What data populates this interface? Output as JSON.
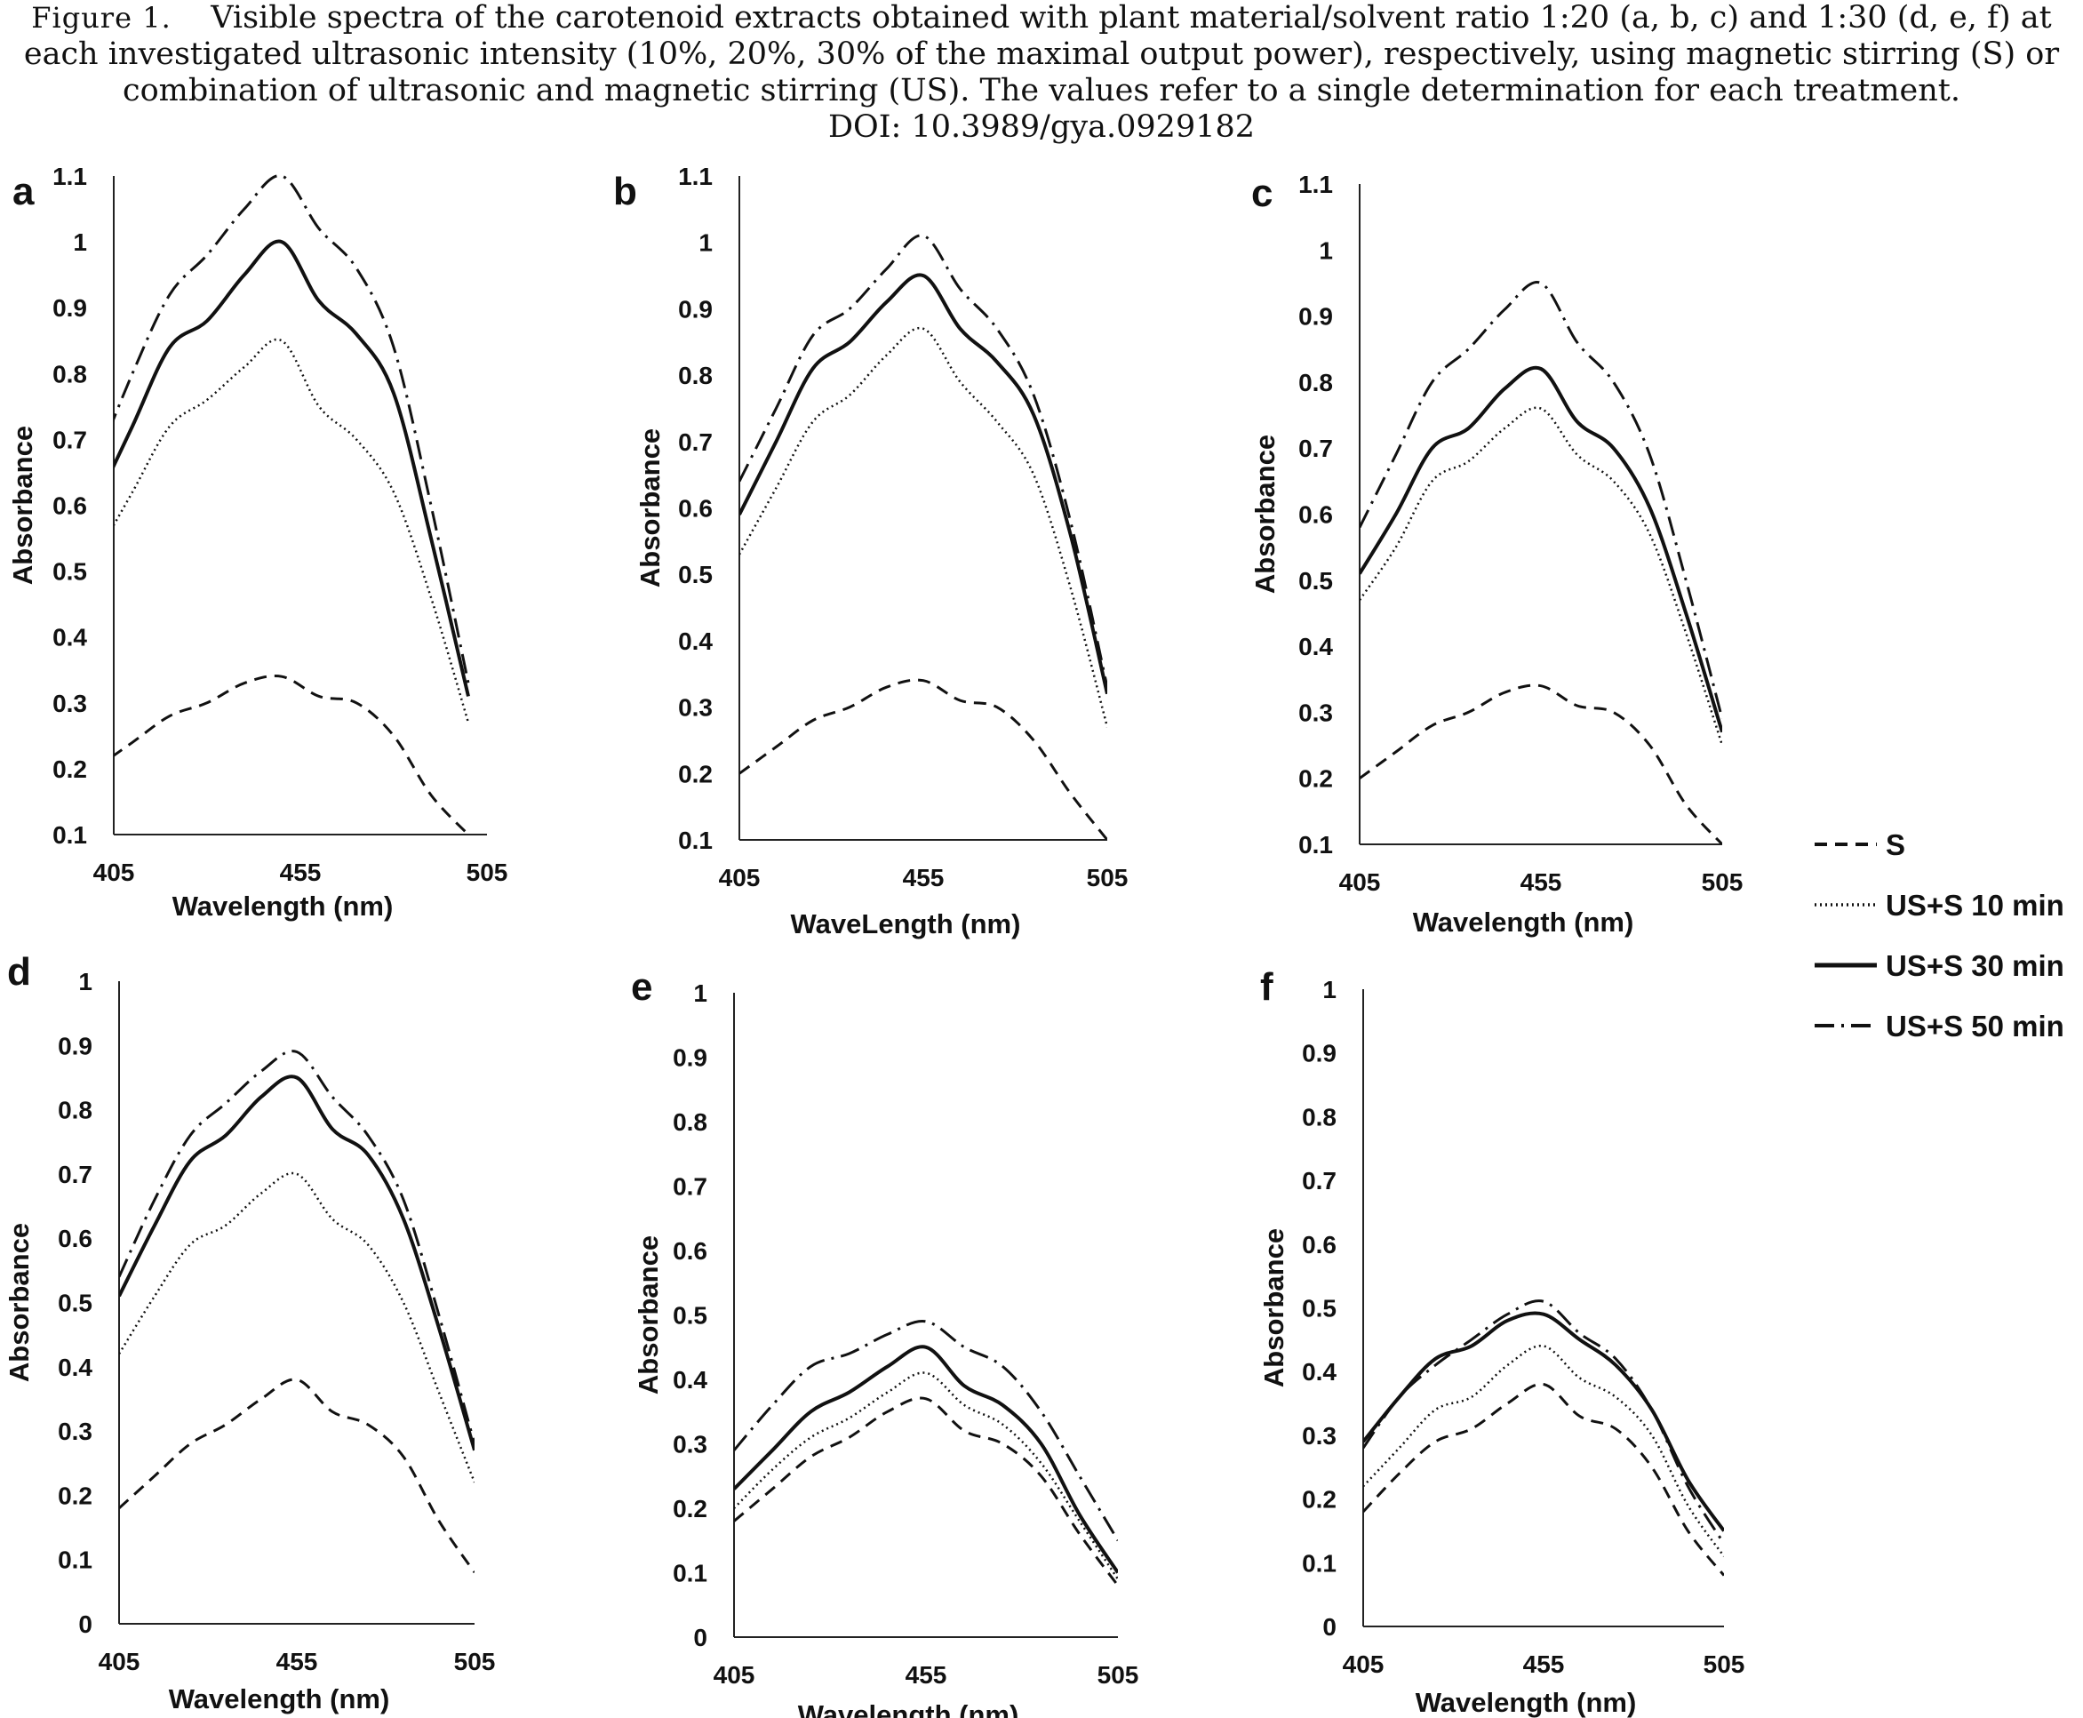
{
  "caption": {
    "figure_label": "Figure 1.",
    "line1": "Visible spectra of the carotenoid extracts obtained with plant material/solvent ratio 1:20 (a, b, c) and 1:30 (d, e, f) at",
    "line2": "each investigated ultrasonic intensity (10%, 20%, 30% of the maximal output power), respectively, using magnetic stirring (S) or",
    "line3": "combination of ultrasonic and magnetic stirring (US). The values refer to a single determination for each treatment.",
    "line4": "DOI: 10.3989/gya.0929182"
  },
  "legend": [
    {
      "name": "S",
      "style": "dash"
    },
    {
      "name": "US+S 10 min",
      "style": "dot"
    },
    {
      "name": "US+S 30 min",
      "style": "solid"
    },
    {
      "name": "US+S 50 min",
      "style": "dashdot"
    }
  ],
  "chart_data": [
    {
      "type": "line",
      "panel": "a",
      "xlabel": "Wavelength (nm)",
      "ylabel": "Absorbance",
      "xlim": [
        405,
        505
      ],
      "xticks": [
        "405",
        "455",
        "505"
      ],
      "ylim": [
        0.1,
        1.1
      ],
      "yticks": [
        "0.1",
        "0.2",
        "0.3",
        "0.4",
        "0.5",
        "0.6",
        "0.7",
        "0.8",
        "0.9",
        "1",
        "1.1"
      ],
      "x": [
        400,
        410,
        420,
        430,
        440,
        450,
        460,
        470,
        480,
        490,
        500
      ],
      "series": [
        {
          "name": "S",
          "values": [
            0.2,
            0.24,
            0.28,
            0.3,
            0.33,
            0.34,
            0.31,
            0.3,
            0.25,
            0.16,
            0.1
          ]
        },
        {
          "name": "US+S 10 min",
          "values": [
            0.52,
            0.62,
            0.72,
            0.76,
            0.81,
            0.85,
            0.75,
            0.7,
            0.62,
            0.46,
            0.27
          ]
        },
        {
          "name": "US+S 30 min",
          "values": [
            0.6,
            0.72,
            0.84,
            0.88,
            0.95,
            1.0,
            0.91,
            0.86,
            0.77,
            0.55,
            0.31
          ]
        },
        {
          "name": "US+S 50 min",
          "values": [
            0.66,
            0.8,
            0.92,
            0.98,
            1.05,
            1.1,
            1.02,
            0.96,
            0.84,
            0.6,
            0.33
          ]
        }
      ]
    },
    {
      "type": "line",
      "panel": "b",
      "xlabel": "WaveLength (nm)",
      "ylabel": "Absorbance",
      "xlim": [
        405,
        505
      ],
      "xticks": [
        "405",
        "455",
        "505"
      ],
      "ylim": [
        0.1,
        1.1
      ],
      "yticks": [
        "0.1",
        "0.2",
        "0.3",
        "0.4",
        "0.5",
        "0.6",
        "0.7",
        "0.8",
        "0.9",
        "1",
        "1.1"
      ],
      "x": [
        405,
        415,
        425,
        435,
        445,
        455,
        465,
        475,
        485,
        495,
        505
      ],
      "series": [
        {
          "name": "S",
          "values": [
            0.2,
            0.24,
            0.28,
            0.3,
            0.33,
            0.34,
            0.31,
            0.3,
            0.25,
            0.17,
            0.1
          ]
        },
        {
          "name": "US+S 10 min",
          "values": [
            0.53,
            0.63,
            0.73,
            0.77,
            0.83,
            0.87,
            0.79,
            0.73,
            0.65,
            0.48,
            0.27
          ]
        },
        {
          "name": "US+S 30 min",
          "values": [
            0.59,
            0.7,
            0.81,
            0.85,
            0.91,
            0.95,
            0.87,
            0.82,
            0.74,
            0.56,
            0.32
          ]
        },
        {
          "name": "US+S 50 min",
          "values": [
            0.64,
            0.75,
            0.86,
            0.9,
            0.96,
            1.01,
            0.93,
            0.87,
            0.77,
            0.58,
            0.33
          ]
        }
      ]
    },
    {
      "type": "line",
      "panel": "c",
      "xlabel": "Wavelength (nm)",
      "ylabel": "Absorbance",
      "xlim": [
        405,
        505
      ],
      "xticks": [
        "405",
        "455",
        "505"
      ],
      "ylim": [
        0.1,
        1.1
      ],
      "yticks": [
        "0.1",
        "0.2",
        "0.3",
        "0.4",
        "0.5",
        "0.6",
        "0.7",
        "0.8",
        "0.9",
        "1",
        "1.1"
      ],
      "x": [
        405,
        415,
        425,
        435,
        445,
        455,
        465,
        475,
        485,
        495,
        505
      ],
      "series": [
        {
          "name": "S",
          "values": [
            0.2,
            0.24,
            0.28,
            0.3,
            0.33,
            0.34,
            0.31,
            0.3,
            0.25,
            0.16,
            0.1
          ]
        },
        {
          "name": "US+S 10 min",
          "values": [
            0.47,
            0.55,
            0.65,
            0.68,
            0.73,
            0.76,
            0.69,
            0.65,
            0.57,
            0.42,
            0.25
          ]
        },
        {
          "name": "US+S 30 min",
          "values": [
            0.51,
            0.6,
            0.7,
            0.73,
            0.79,
            0.82,
            0.74,
            0.7,
            0.61,
            0.45,
            0.27
          ]
        },
        {
          "name": "US+S 50 min",
          "values": [
            0.58,
            0.69,
            0.8,
            0.85,
            0.91,
            0.95,
            0.86,
            0.8,
            0.69,
            0.5,
            0.29
          ]
        }
      ]
    },
    {
      "type": "line",
      "panel": "d",
      "xlabel": "Wavelength (nm)",
      "ylabel": "Absorbance",
      "xlim": [
        405,
        505
      ],
      "xticks": [
        "405",
        "455",
        "505"
      ],
      "ylim": [
        0,
        1
      ],
      "yticks": [
        "0",
        "0.1",
        "0.2",
        "0.3",
        "0.4",
        "0.5",
        "0.6",
        "0.7",
        "0.8",
        "0.9",
        "1"
      ],
      "x": [
        405,
        415,
        425,
        435,
        445,
        455,
        465,
        475,
        485,
        495,
        505
      ],
      "series": [
        {
          "name": "S",
          "values": [
            0.18,
            0.23,
            0.28,
            0.31,
            0.35,
            0.38,
            0.33,
            0.31,
            0.26,
            0.16,
            0.08
          ]
        },
        {
          "name": "US+S 10 min",
          "values": [
            0.42,
            0.51,
            0.59,
            0.62,
            0.67,
            0.7,
            0.63,
            0.59,
            0.5,
            0.36,
            0.22
          ]
        },
        {
          "name": "US+S 30 min",
          "values": [
            0.51,
            0.62,
            0.72,
            0.76,
            0.82,
            0.85,
            0.77,
            0.73,
            0.63,
            0.46,
            0.27
          ]
        },
        {
          "name": "US+S 50 min",
          "values": [
            0.54,
            0.66,
            0.76,
            0.81,
            0.86,
            0.89,
            0.82,
            0.76,
            0.66,
            0.48,
            0.28
          ]
        }
      ]
    },
    {
      "type": "line",
      "panel": "e",
      "xlabel": "Wavelength (nm)",
      "ylabel": "Absorbance",
      "xlim": [
        405,
        505
      ],
      "xticks": [
        "405",
        "455",
        "505"
      ],
      "ylim": [
        0,
        1
      ],
      "yticks": [
        "0",
        "0.1",
        "0.2",
        "0.3",
        "0.4",
        "0.5",
        "0.6",
        "0.7",
        "0.8",
        "0.9",
        "1"
      ],
      "x": [
        405,
        415,
        425,
        435,
        445,
        455,
        465,
        475,
        485,
        495,
        505
      ],
      "series": [
        {
          "name": "S",
          "values": [
            0.18,
            0.23,
            0.28,
            0.31,
            0.35,
            0.37,
            0.32,
            0.3,
            0.25,
            0.16,
            0.08
          ]
        },
        {
          "name": "US+S 10 min",
          "values": [
            0.2,
            0.26,
            0.31,
            0.34,
            0.38,
            0.41,
            0.36,
            0.33,
            0.27,
            0.18,
            0.09
          ]
        },
        {
          "name": "US+S 30 min",
          "values": [
            0.23,
            0.29,
            0.35,
            0.38,
            0.42,
            0.45,
            0.39,
            0.36,
            0.3,
            0.19,
            0.1
          ]
        },
        {
          "name": "US+S 50 min",
          "values": [
            0.29,
            0.36,
            0.42,
            0.44,
            0.47,
            0.49,
            0.45,
            0.42,
            0.35,
            0.25,
            0.15
          ]
        }
      ]
    },
    {
      "type": "line",
      "panel": "f",
      "xlabel": "Wavelength (nm)",
      "ylabel": "Absorbance",
      "xlim": [
        405,
        505
      ],
      "xticks": [
        "405",
        "455",
        "505"
      ],
      "ylim": [
        0,
        1
      ],
      "yticks": [
        "0",
        "0.1",
        "0.2",
        "0.3",
        "0.4",
        "0.5",
        "0.6",
        "0.7",
        "0.8",
        "0.9",
        "1"
      ],
      "x": [
        405,
        415,
        425,
        435,
        445,
        455,
        465,
        475,
        485,
        495,
        505
      ],
      "series": [
        {
          "name": "S",
          "values": [
            0.18,
            0.24,
            0.29,
            0.31,
            0.35,
            0.38,
            0.33,
            0.31,
            0.25,
            0.15,
            0.08
          ]
        },
        {
          "name": "US+S 10 min",
          "values": [
            0.22,
            0.28,
            0.34,
            0.36,
            0.41,
            0.44,
            0.39,
            0.36,
            0.3,
            0.19,
            0.11
          ]
        },
        {
          "name": "US+S 30 min",
          "values": [
            0.29,
            0.36,
            0.42,
            0.44,
            0.48,
            0.49,
            0.45,
            0.41,
            0.34,
            0.23,
            0.15
          ]
        },
        {
          "name": "US+S 50 min",
          "values": [
            0.28,
            0.36,
            0.41,
            0.45,
            0.49,
            0.51,
            0.46,
            0.42,
            0.34,
            0.22,
            0.13
          ]
        }
      ]
    }
  ]
}
